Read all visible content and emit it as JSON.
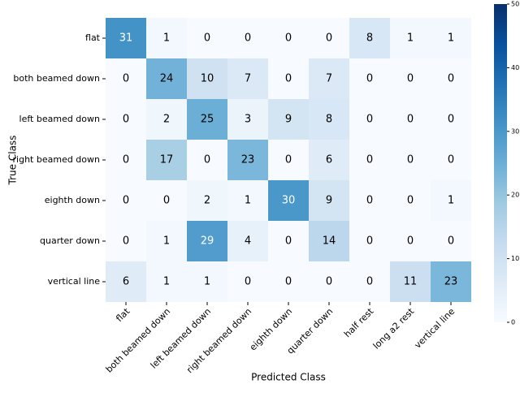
{
  "chart_data": {
    "type": "heatmap",
    "x_label": "Predicted Class",
    "y_label": "True Class",
    "x_categories": [
      "flat",
      "both beamed down",
      "left beamed down",
      "right beamed down",
      "eighth down",
      "quarter down",
      "half rest",
      "long a2 rest",
      "vertical line"
    ],
    "y_categories": [
      "flat",
      "both beamed down",
      "left beamed down",
      "right beamed down",
      "eighth down",
      "quarter down",
      "vertical line"
    ],
    "values": [
      [
        31,
        1,
        0,
        0,
        0,
        0,
        8,
        1,
        1
      ],
      [
        0,
        24,
        10,
        7,
        0,
        7,
        0,
        0,
        0
      ],
      [
        0,
        2,
        25,
        3,
        9,
        8,
        0,
        0,
        0
      ],
      [
        0,
        17,
        0,
        23,
        0,
        6,
        0,
        0,
        0
      ],
      [
        0,
        0,
        2,
        1,
        30,
        9,
        0,
        0,
        1
      ],
      [
        0,
        1,
        29,
        4,
        0,
        14,
        0,
        0,
        0
      ],
      [
        6,
        1,
        1,
        0,
        0,
        0,
        0,
        11,
        23
      ]
    ],
    "colormap": "Blues",
    "clim": [
      0,
      50
    ],
    "cticks": [
      0,
      10,
      20,
      30,
      40,
      50
    ]
  }
}
